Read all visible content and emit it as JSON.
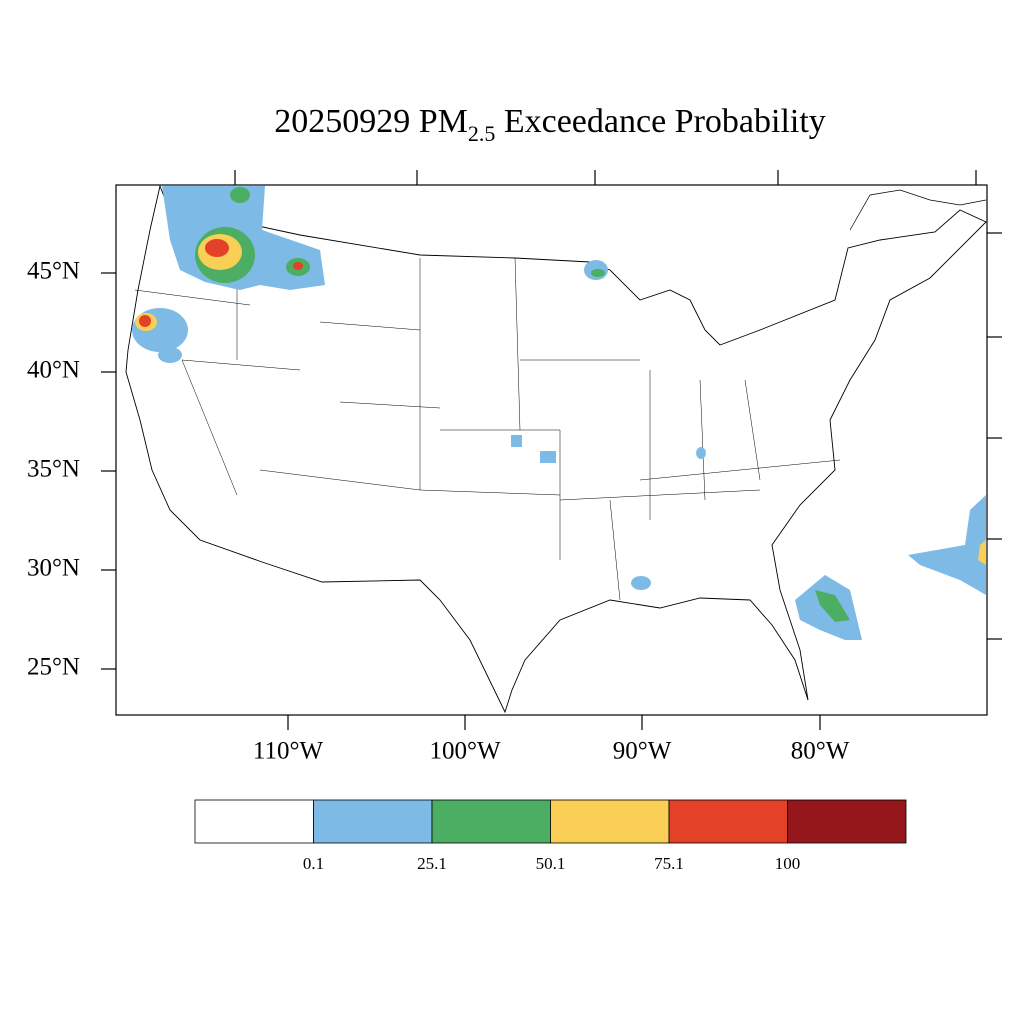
{
  "title": {
    "main": "20250929 PM",
    "sub": "2.5",
    "rest": " Exceedance Probability"
  },
  "lat_labels": [
    "45°N",
    "40°N",
    "35°N",
    "30°N",
    "25°N"
  ],
  "lon_labels": [
    "110°W",
    "100°W",
    "90°W",
    "80°W"
  ],
  "colorbar": {
    "colors": [
      "#ffffff",
      "#7dbbe6",
      "#4bae62",
      "#f9cf55",
      "#e34128",
      "#96171b"
    ],
    "labels": [
      "0.1",
      "25.1",
      "50.1",
      "75.1",
      "100"
    ]
  }
}
